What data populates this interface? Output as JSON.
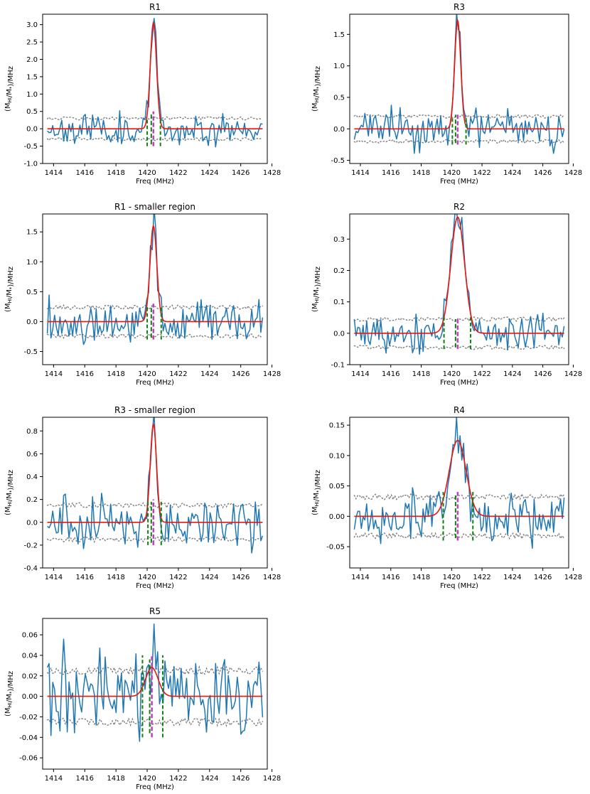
{
  "figure": {
    "colors": {
      "data": "#1f77b4",
      "fit": "#e8160f",
      "noise": "#808080",
      "window": "#118011",
      "center": "#bf3fbf",
      "frame": "#000000"
    },
    "xlabel": "Freq (MHz)",
    "ylabel": "(M_HI/M_*)/MHz"
  },
  "chart_data": [
    {
      "type": "line",
      "title": "R1",
      "xlabel": "Freq (MHz)",
      "ylabel": "(M_HI/M_*)/MHz",
      "xlim": [
        1413.3,
        1427.7
      ],
      "ylim": [
        -1.0,
        3.3
      ],
      "xticks": [
        1414,
        1416,
        1418,
        1420,
        1422,
        1424,
        1426,
        1428
      ],
      "yticks": [
        -1.0,
        -0.5,
        0.0,
        0.5,
        1.0,
        1.5,
        2.0,
        2.5,
        3.0
      ],
      "ytick_decimals": 1,
      "fit": {
        "amplitude": 3.05,
        "center": 1420.4,
        "sigma": 0.2
      },
      "noise_band": 0.3,
      "noise_amp": 0.25,
      "center_line": {
        "x": 1420.4,
        "ymin": -0.5,
        "ymax": 0.5
      },
      "window_lines": [
        1420.0,
        1420.85
      ],
      "window_span": [
        -0.5,
        0.3
      ],
      "seed": 11
    },
    {
      "type": "line",
      "title": "R3",
      "xlabel": "Freq (MHz)",
      "ylabel": "(M_HI/M_*)/MHz",
      "xlim": [
        1413.3,
        1427.7
      ],
      "ylim": [
        -0.55,
        1.82
      ],
      "xticks": [
        1414,
        1416,
        1418,
        1420,
        1422,
        1424,
        1426,
        1428
      ],
      "yticks": [
        -0.5,
        0.0,
        0.5,
        1.0,
        1.5
      ],
      "ytick_decimals": 1,
      "fit": {
        "amplitude": 1.72,
        "center": 1420.4,
        "sigma": 0.2
      },
      "noise_band": 0.2,
      "noise_amp": 0.17,
      "center_line": {
        "x": 1420.4,
        "ymin": -0.25,
        "ymax": 0.25
      },
      "window_lines": [
        1420.05,
        1420.95
      ],
      "window_span": [
        -0.25,
        0.2
      ],
      "seed": 23
    },
    {
      "type": "line",
      "title": "R1 - smaller region",
      "xlabel": "Freq (MHz)",
      "ylabel": "(M_HI/M_*)/MHz",
      "xlim": [
        1413.3,
        1427.7
      ],
      "ylim": [
        -0.72,
        1.8
      ],
      "xticks": [
        1414,
        1416,
        1418,
        1420,
        1422,
        1424,
        1426,
        1428
      ],
      "yticks": [
        -0.5,
        0.0,
        0.5,
        1.0,
        1.5
      ],
      "ytick_decimals": 1,
      "fit": {
        "amplitude": 1.6,
        "center": 1420.4,
        "sigma": 0.22
      },
      "noise_band": 0.24,
      "noise_amp": 0.2,
      "center_line": {
        "x": 1420.4,
        "ymin": -0.3,
        "ymax": 0.3
      },
      "window_lines": [
        1420.0,
        1420.9
      ],
      "window_span": [
        -0.3,
        0.25
      ],
      "seed": 37
    },
    {
      "type": "line",
      "title": "R2",
      "xlabel": "Freq (MHz)",
      "ylabel": "(M_HI/M_*)/MHz",
      "xlim": [
        1413.3,
        1427.7
      ],
      "ylim": [
        -0.1,
        0.38
      ],
      "xticks": [
        1414,
        1416,
        1418,
        1420,
        1422,
        1424,
        1426,
        1428
      ],
      "yticks": [
        -0.1,
        0.0,
        0.1,
        0.2,
        0.3
      ],
      "ytick_decimals": 1,
      "fit": {
        "amplitude": 0.37,
        "center": 1420.4,
        "sigma": 0.45
      },
      "noise_band": 0.045,
      "noise_amp": 0.035,
      "center_line": {
        "x": 1420.4,
        "ymin": -0.05,
        "ymax": 0.05
      },
      "window_lines": [
        1419.5,
        1421.25
      ],
      "window_span": [
        -0.05,
        0.05
      ],
      "seed": 53
    },
    {
      "type": "line",
      "title": "R3 - smaller region",
      "xlabel": "Freq (MHz)",
      "ylabel": "(M_HI/M_*)/MHz",
      "xlim": [
        1413.3,
        1427.7
      ],
      "ylim": [
        -0.4,
        0.92
      ],
      "xticks": [
        1414,
        1416,
        1418,
        1420,
        1422,
        1424,
        1426,
        1428
      ],
      "yticks": [
        -0.4,
        -0.2,
        0.0,
        0.2,
        0.4,
        0.6,
        0.8
      ],
      "ytick_decimals": 1,
      "fit": {
        "amplitude": 0.86,
        "center": 1420.4,
        "sigma": 0.2
      },
      "noise_band": 0.15,
      "noise_amp": 0.12,
      "center_line": {
        "x": 1420.4,
        "ymin": -0.2,
        "ymax": 0.2
      },
      "window_lines": [
        1420.05,
        1420.9
      ],
      "window_span": [
        -0.2,
        0.2
      ],
      "seed": 71
    },
    {
      "type": "line",
      "title": "R4",
      "xlabel": "Freq (MHz)",
      "ylabel": "(M_HI/M_*)/MHz",
      "xlim": [
        1413.3,
        1427.7
      ],
      "ylim": [
        -0.085,
        0.163
      ],
      "xticks": [
        1414,
        1416,
        1418,
        1420,
        1422,
        1424,
        1426,
        1428
      ],
      "yticks": [
        -0.05,
        0.0,
        0.05,
        0.1,
        0.15
      ],
      "ytick_decimals": 2,
      "fit": {
        "amplitude": 0.125,
        "center": 1420.4,
        "sigma": 0.55
      },
      "noise_band": 0.032,
      "noise_amp": 0.025,
      "center_line": {
        "x": 1420.4,
        "ymin": -0.04,
        "ymax": 0.04
      },
      "window_lines": [
        1419.45,
        1421.4
      ],
      "window_span": [
        -0.04,
        0.04
      ],
      "seed": 89
    },
    {
      "type": "line",
      "title": "R5",
      "xlabel": "Freq (MHz)",
      "ylabel": "(M_HI/M_*)/MHz",
      "xlim": [
        1413.3,
        1427.7
      ],
      "ylim": [
        -0.071,
        0.076
      ],
      "xticks": [
        1414,
        1416,
        1418,
        1420,
        1422,
        1424,
        1426,
        1428
      ],
      "yticks": [
        -0.06,
        -0.04,
        -0.02,
        0.0,
        0.02,
        0.04,
        0.06
      ],
      "ytick_decimals": 2,
      "fit": {
        "amplitude": 0.028,
        "center": 1420.3,
        "sigma": 0.4
      },
      "noise_band": 0.025,
      "noise_amp": 0.022,
      "center_line": {
        "x": 1420.3,
        "ymin": -0.04,
        "ymax": 0.04
      },
      "window_lines": [
        1419.7,
        1421.0
      ],
      "window_span": [
        -0.04,
        0.04
      ],
      "seed": 97
    }
  ]
}
